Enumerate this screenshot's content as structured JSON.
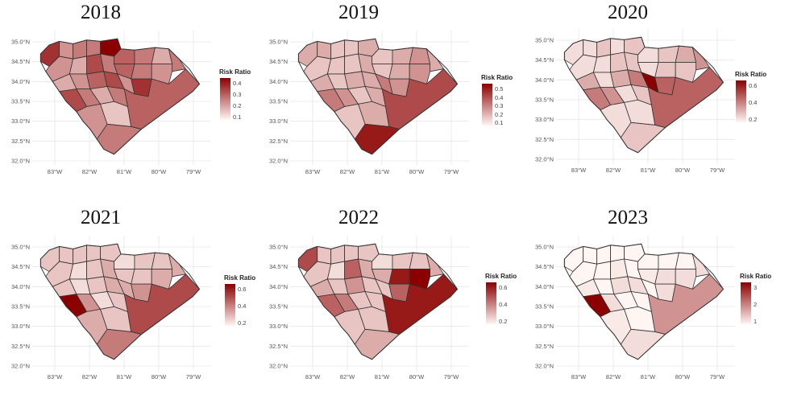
{
  "legend_title": "Risk Ratio",
  "lat_labels": [
    "35.0°N",
    "34.5°N",
    "34.0°N",
    "33.5°N",
    "33.0°N",
    "32.5°N",
    "32.0°N"
  ],
  "lon_labels": [
    "83°W",
    "82°W",
    "81°W",
    "80°W",
    "79°W"
  ],
  "colors": {
    "low": "#fff5f3",
    "high": "#8b0000",
    "outline": "#333333"
  },
  "panels": [
    {
      "year": "2018",
      "legend_ticks": [
        "0.4",
        "0.3",
        "0.2",
        "0.1"
      ],
      "levels": [
        0.8,
        0.4,
        0.5,
        0.5,
        1.0,
        0.6,
        0.5,
        0.3,
        0.5,
        0.4,
        0.3,
        0.7,
        0.5,
        0.6,
        0.5,
        0.4,
        0.3,
        0.4,
        0.6,
        0.7,
        0.4,
        0.8,
        0.7,
        0.5,
        0.3,
        0.5,
        0.4,
        0.2,
        0.6,
        0.5
      ]
    },
    {
      "year": "2019",
      "legend_ticks": [
        "0.5",
        "0.4",
        "0.3",
        "0.2",
        "0.1"
      ],
      "levels": [
        0.3,
        0.3,
        0.2,
        0.2,
        0.3,
        0.2,
        0.3,
        0.4,
        0.3,
        0.2,
        0.2,
        0.2,
        0.3,
        0.2,
        0.3,
        0.4,
        0.3,
        0.2,
        0.3,
        0.3,
        0.5,
        0.4,
        0.5,
        0.4,
        0.2,
        0.3,
        0.2,
        0.3,
        0.7,
        0.9
      ]
    },
    {
      "year": "2020",
      "legend_ticks": [
        "0.6",
        "0.4",
        "0.2"
      ],
      "levels": [
        0.1,
        0.1,
        0.2,
        0.1,
        0.2,
        0.1,
        0.2,
        0.3,
        0.4,
        0.1,
        0.1,
        0.2,
        0.2,
        0.1,
        0.2,
        0.2,
        0.3,
        0.1,
        0.3,
        0.5,
        1.0,
        0.6,
        0.5,
        0.4,
        0.1,
        0.2,
        0.1,
        0.1,
        0.6,
        0.2
      ]
    },
    {
      "year": "2021",
      "legend_ticks": [
        "0.6",
        "0.4",
        "0.2"
      ],
      "levels": [
        0.2,
        0.2,
        0.2,
        0.2,
        0.2,
        0.1,
        0.2,
        0.2,
        0.3,
        0.2,
        0.1,
        0.2,
        0.3,
        0.2,
        0.2,
        0.3,
        0.2,
        0.1,
        0.2,
        0.3,
        0.3,
        0.4,
        1.0,
        0.4,
        0.1,
        0.2,
        0.3,
        0.2,
        0.7,
        0.5
      ]
    },
    {
      "year": "2022",
      "legend_ticks": [
        "0.6",
        "0.4",
        "0.2"
      ],
      "levels": [
        0.7,
        0.2,
        0.2,
        0.2,
        0.2,
        0.1,
        0.2,
        0.2,
        0.3,
        0.2,
        0.1,
        0.6,
        0.3,
        0.3,
        0.9,
        1.0,
        0.3,
        0.2,
        0.4,
        0.2,
        0.2,
        0.6,
        0.6,
        0.5,
        0.2,
        0.2,
        0.2,
        0.2,
        0.9,
        0.3
      ]
    },
    {
      "year": "2023",
      "legend_ticks": [
        "3",
        "2",
        "1"
      ],
      "levels": [
        0.0,
        0.0,
        0.0,
        0.0,
        0.0,
        0.0,
        0.0,
        0.0,
        0.1,
        0.0,
        0.0,
        0.05,
        0.0,
        0.05,
        0.1,
        0.1,
        0.05,
        0.0,
        0.1,
        0.1,
        0.0,
        0.1,
        1.0,
        0.1,
        0.0,
        0.0,
        0.05,
        0.0,
        0.4,
        0.1
      ]
    }
  ]
}
